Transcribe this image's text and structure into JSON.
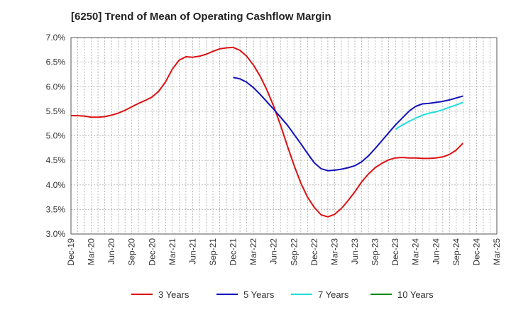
{
  "chart_data": {
    "type": "line",
    "title": "[6250]  Trend of Mean of Operating Cashflow Margin",
    "xlabel": "",
    "ylabel": "",
    "ylim": [
      3.0,
      7.0
    ],
    "yticks": [
      "3.0%",
      "3.5%",
      "4.0%",
      "4.5%",
      "5.0%",
      "5.5%",
      "6.0%",
      "6.5%",
      "7.0%"
    ],
    "xticks": [
      "Dec-19",
      "Mar-20",
      "Jun-20",
      "Sep-20",
      "Dec-20",
      "Mar-21",
      "Jun-21",
      "Sep-21",
      "Dec-21",
      "Mar-22",
      "Jun-22",
      "Sep-22",
      "Dec-22",
      "Mar-23",
      "Jun-23",
      "Sep-23",
      "Dec-23",
      "Mar-24",
      "Jun-24",
      "Sep-24",
      "Dec-24",
      "Mar-25"
    ],
    "grid": true,
    "legend_position": "bottom",
    "series": [
      {
        "name": "3 Years",
        "color": "#dd1111",
        "points": [
          [
            0,
            5.41
          ],
          [
            1,
            5.41
          ],
          [
            2,
            5.4
          ],
          [
            3,
            5.38
          ],
          [
            4,
            5.38
          ],
          [
            5,
            5.39
          ],
          [
            6,
            5.42
          ],
          [
            7,
            5.46
          ],
          [
            8,
            5.52
          ],
          [
            9,
            5.59
          ],
          [
            10,
            5.66
          ],
          [
            11,
            5.72
          ],
          [
            12,
            5.79
          ],
          [
            13,
            5.91
          ],
          [
            14,
            6.1
          ],
          [
            15,
            6.36
          ],
          [
            16,
            6.54
          ],
          [
            17,
            6.61
          ],
          [
            18,
            6.6
          ],
          [
            19,
            6.62
          ],
          [
            20,
            6.66
          ],
          [
            21,
            6.72
          ],
          [
            22,
            6.77
          ],
          [
            23,
            6.79
          ],
          [
            24,
            6.8
          ],
          [
            25,
            6.74
          ],
          [
            26,
            6.62
          ],
          [
            27,
            6.44
          ],
          [
            28,
            6.21
          ],
          [
            29,
            5.93
          ],
          [
            30,
            5.6
          ],
          [
            31,
            5.22
          ],
          [
            32,
            4.8
          ],
          [
            33,
            4.4
          ],
          [
            34,
            4.04
          ],
          [
            35,
            3.75
          ],
          [
            36,
            3.54
          ],
          [
            37,
            3.39
          ],
          [
            38,
            3.35
          ],
          [
            39,
            3.4
          ],
          [
            40,
            3.52
          ],
          [
            41,
            3.68
          ],
          [
            42,
            3.86
          ],
          [
            43,
            4.06
          ],
          [
            44,
            4.22
          ],
          [
            45,
            4.35
          ],
          [
            46,
            4.44
          ],
          [
            47,
            4.51
          ],
          [
            48,
            4.55
          ],
          [
            49,
            4.56
          ],
          [
            50,
            4.55
          ],
          [
            51,
            4.55
          ],
          [
            52,
            4.54
          ],
          [
            53,
            4.54
          ],
          [
            54,
            4.55
          ],
          [
            55,
            4.57
          ],
          [
            56,
            4.62
          ],
          [
            57,
            4.71
          ],
          [
            58,
            4.85
          ]
        ]
      },
      {
        "name": "5 Years",
        "color": "#1111bb",
        "points": [
          [
            24,
            6.19
          ],
          [
            25,
            6.16
          ],
          [
            26,
            6.09
          ],
          [
            27,
            5.98
          ],
          [
            28,
            5.84
          ],
          [
            29,
            5.69
          ],
          [
            30,
            5.54
          ],
          [
            31,
            5.38
          ],
          [
            32,
            5.22
          ],
          [
            33,
            5.03
          ],
          [
            34,
            4.84
          ],
          [
            35,
            4.64
          ],
          [
            36,
            4.45
          ],
          [
            37,
            4.33
          ],
          [
            38,
            4.29
          ],
          [
            39,
            4.3
          ],
          [
            40,
            4.32
          ],
          [
            41,
            4.35
          ],
          [
            42,
            4.39
          ],
          [
            43,
            4.47
          ],
          [
            44,
            4.59
          ],
          [
            45,
            4.74
          ],
          [
            46,
            4.9
          ],
          [
            47,
            5.06
          ],
          [
            48,
            5.22
          ],
          [
            49,
            5.36
          ],
          [
            50,
            5.5
          ],
          [
            51,
            5.6
          ],
          [
            52,
            5.65
          ],
          [
            53,
            5.66
          ],
          [
            54,
            5.68
          ],
          [
            55,
            5.7
          ],
          [
            56,
            5.73
          ],
          [
            57,
            5.77
          ],
          [
            58,
            5.81
          ]
        ]
      },
      {
        "name": "7 Years",
        "color": "#22dddd",
        "points": [
          [
            48,
            5.13
          ],
          [
            49,
            5.22
          ],
          [
            50,
            5.29
          ],
          [
            51,
            5.36
          ],
          [
            52,
            5.42
          ],
          [
            53,
            5.46
          ],
          [
            54,
            5.49
          ],
          [
            55,
            5.53
          ],
          [
            56,
            5.58
          ],
          [
            57,
            5.63
          ],
          [
            58,
            5.68
          ]
        ]
      },
      {
        "name": "10 Years",
        "color": "#118811",
        "points": []
      }
    ]
  }
}
